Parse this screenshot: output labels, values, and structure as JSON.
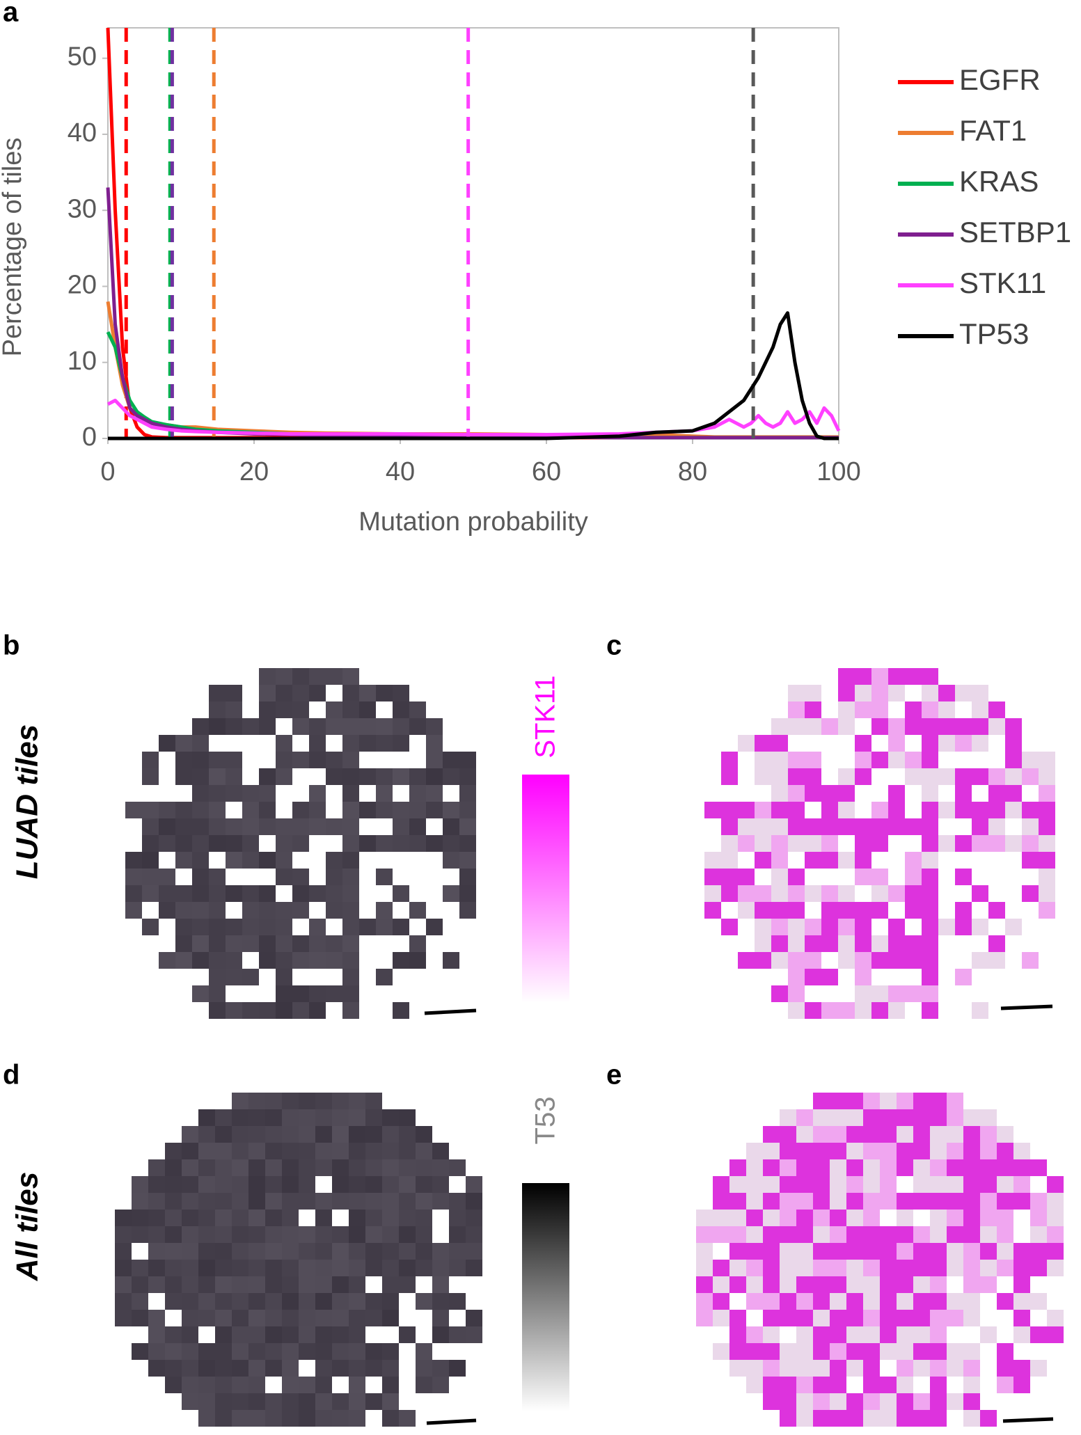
{
  "chart_data": {
    "type": "line",
    "x_label": "Mutation probability",
    "y_label": "Percentage of tiles",
    "x": [
      0,
      1,
      2,
      3,
      4,
      5,
      6,
      8,
      10,
      12,
      15,
      20,
      25,
      30,
      40,
      50,
      60,
      70,
      75,
      80,
      83,
      85,
      87,
      88,
      89,
      90,
      91,
      92,
      93,
      94,
      95,
      96,
      97,
      98,
      99,
      100
    ],
    "xlim": [
      0,
      100
    ],
    "xticks": [
      0,
      20,
      40,
      60,
      80,
      100
    ],
    "ylim": [
      0,
      54
    ],
    "yticks": [
      0,
      10,
      20,
      30,
      40,
      50
    ],
    "legend": "right",
    "series": [
      {
        "name": "EGFR",
        "color": "#ff0000",
        "cutoff": 2.5,
        "cutoff_color": "#ff0000",
        "values": [
          54,
          30,
          12,
          4,
          1.5,
          0.5,
          0.2,
          0.1,
          0.1,
          0.1,
          0.1,
          0.1,
          0.1,
          0.1,
          0.1,
          0.1,
          0.1,
          0.1,
          0.1,
          0.1,
          0.1,
          0.1,
          0.1,
          0.1,
          0.1,
          0.1,
          0.1,
          0.1,
          0.1,
          0.1,
          0.1,
          0.1,
          0.1,
          0.1,
          0.1,
          0.1
        ]
      },
      {
        "name": "FAT1",
        "color": "#ed7d31",
        "cutoff": 14.5,
        "cutoff_color": "#ed7d31",
        "values": [
          18,
          12,
          7,
          4,
          3,
          2.5,
          2,
          1.8,
          1.5,
          1.5,
          1.2,
          1,
          0.8,
          0.7,
          0.6,
          0.6,
          0.5,
          0.5,
          0.5,
          0.3,
          0.2,
          0.2,
          0.2,
          0.2,
          0.2,
          0.2,
          0.2,
          0.2,
          0.2,
          0.2,
          0.2,
          0.2,
          0.2,
          0.2,
          0.2,
          0.2
        ]
      },
      {
        "name": "KRAS",
        "color": "#00b050",
        "cutoff": 8.5,
        "cutoff_color": "#00b050",
        "values": [
          14,
          12,
          8,
          5,
          3.5,
          2.8,
          2.2,
          1.8,
          1.5,
          1.2,
          1,
          0.8,
          0.6,
          0.5,
          0.4,
          0.3,
          0.2,
          0.1,
          0.1,
          0.1,
          0.1,
          0.1,
          0.1,
          0.1,
          0.1,
          0.1,
          0.1,
          0.1,
          0.1,
          0.1,
          0.1,
          0.1,
          0.1,
          0.1,
          0.1,
          0.1
        ]
      },
      {
        "name": "SETBP1",
        "color": "#7f1f8f",
        "cutoff": 8.8,
        "cutoff_color": "#7030a0",
        "values": [
          33,
          15,
          8,
          4,
          3,
          2.5,
          2,
          1.5,
          1.2,
          1,
          0.8,
          0.6,
          0.5,
          0.4,
          0.3,
          0.2,
          0.2,
          0.1,
          0.1,
          0.1,
          0.1,
          0.1,
          0.1,
          0.1,
          0.1,
          0.1,
          0.1,
          0.1,
          0.1,
          0.1,
          0.1,
          0.1,
          0.1,
          0.1,
          0.1,
          0.1
        ]
      },
      {
        "name": "STK11",
        "color": "#ff40ff",
        "cutoff": 49.3,
        "cutoff_color": "#ff40ff",
        "values": [
          4.5,
          5,
          4,
          3,
          2.5,
          2,
          1.5,
          1.2,
          1,
          0.9,
          0.8,
          0.7,
          0.6,
          0.6,
          0.6,
          0.5,
          0.5,
          0.6,
          0.8,
          1,
          1.5,
          2.5,
          1.5,
          2,
          3,
          2,
          1.5,
          2,
          3.5,
          2,
          2.5,
          3.5,
          2,
          4,
          3,
          1
        ]
      },
      {
        "name": "TP53",
        "color": "#000000",
        "cutoff": 88.3,
        "cutoff_color": "#595959",
        "values": [
          0,
          0,
          0,
          0,
          0,
          0,
          0,
          0,
          0,
          0,
          0,
          0,
          0,
          0,
          0,
          0,
          0,
          0.3,
          0.8,
          1,
          2,
          3.5,
          5,
          6.5,
          8,
          10,
          12,
          15,
          16.5,
          10,
          5,
          2,
          0.3,
          0,
          0,
          0
        ]
      }
    ]
  },
  "figure": {
    "panels": [
      "a",
      "b",
      "c",
      "d",
      "e"
    ],
    "row_labels": [
      "LUAD tiles",
      "All tiles"
    ],
    "colorbars": [
      {
        "label": "STK11",
        "color": "#ff00ff"
      },
      {
        "label": "T53",
        "color": "#000000"
      }
    ]
  }
}
